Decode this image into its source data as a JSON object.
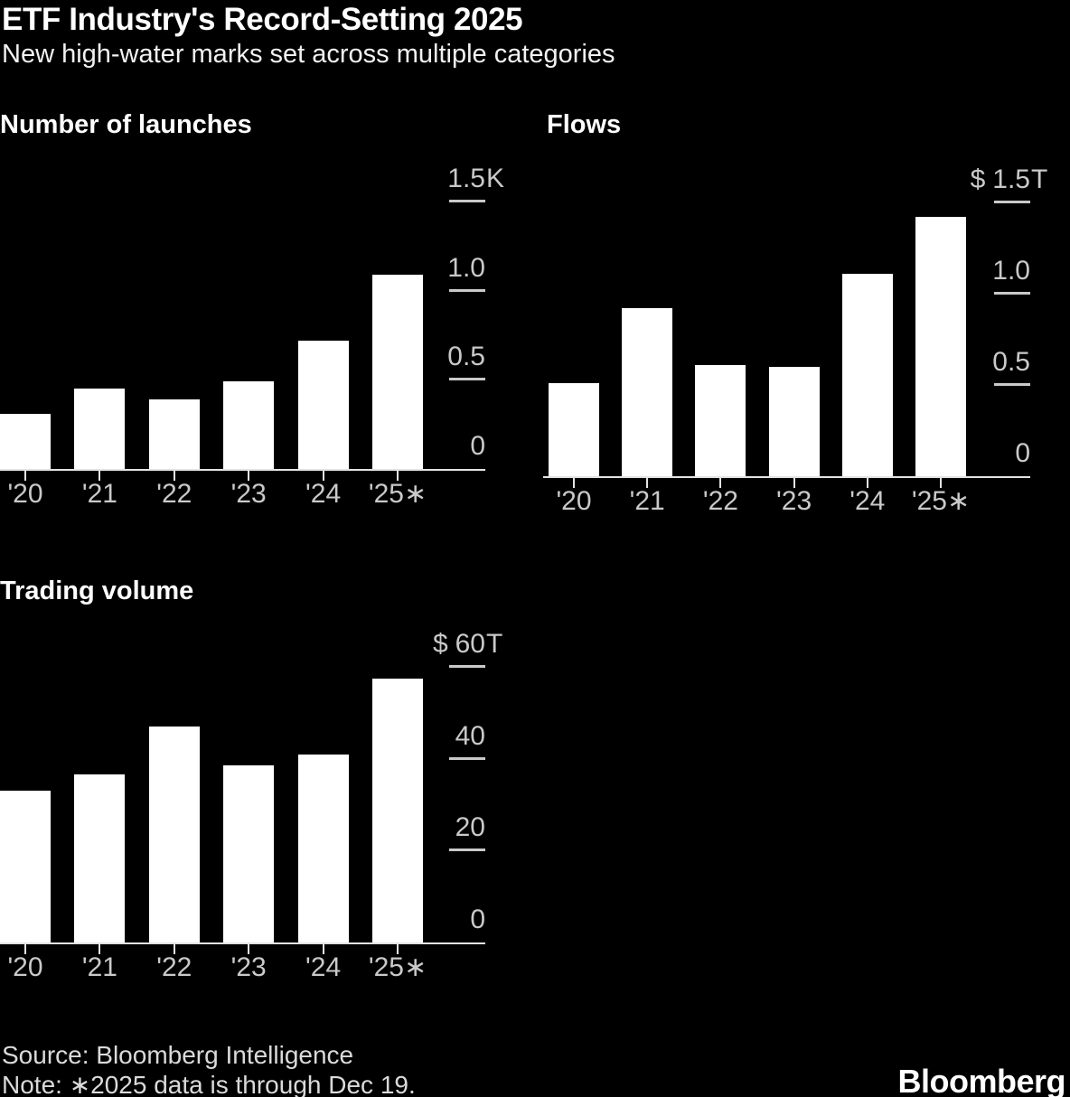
{
  "header": {
    "title": "ETF Industry's Record-Setting 2025",
    "subtitle": "New high-water marks set across multiple categories"
  },
  "footer": {
    "source": "Source: Bloomberg Intelligence",
    "note": "Note: ∗2025 data is through Dec 19.",
    "logo": "Bloomberg"
  },
  "colors": {
    "background": "#000000",
    "bar": "#ffffff",
    "axis": "#e3e3e3",
    "tick_label": "#c9c9c9",
    "text": "#ffffff"
  },
  "chart_data": [
    {
      "type": "bar",
      "title": "Number of launches",
      "categories": [
        "'20",
        "'21",
        "'22",
        "'23",
        "'24",
        "'25∗"
      ],
      "values": [
        310,
        450,
        390,
        490,
        720,
        1090
      ],
      "unit": "number of ETF launches",
      "ylim": [
        0,
        1520
      ],
      "grid": false,
      "legend": false,
      "axis_side": "right",
      "yticks": [
        {
          "value": 0,
          "label": "0"
        },
        {
          "value": 500,
          "label": "0.5"
        },
        {
          "value": 1000,
          "label": "1.0"
        },
        {
          "value": 1500,
          "label": "1.5",
          "suffix": "K"
        }
      ]
    },
    {
      "type": "bar",
      "title": "Flows",
      "categories": [
        "'20",
        "'21",
        "'22",
        "'23",
        "'24",
        "'25∗"
      ],
      "values": [
        0.51,
        0.92,
        0.61,
        0.6,
        1.11,
        1.42
      ],
      "unit": "USD trillions",
      "ylim": [
        0,
        1.55
      ],
      "grid": false,
      "legend": false,
      "axis_side": "right",
      "yticks": [
        {
          "value": 0,
          "label": "0"
        },
        {
          "value": 0.5,
          "label": "0.5"
        },
        {
          "value": 1,
          "label": "1.0"
        },
        {
          "value": 1.5,
          "label": "1.5",
          "prefix": "$",
          "suffix": "T"
        }
      ]
    },
    {
      "type": "bar",
      "title": "Trading volume",
      "categories": [
        "'20",
        "'21",
        "'22",
        "'23",
        "'24",
        "'25∗"
      ],
      "values": [
        33,
        36.5,
        47,
        38.5,
        41,
        57.5
      ],
      "unit": "USD trillions",
      "ylim": [
        0,
        62
      ],
      "grid": false,
      "legend": false,
      "axis_side": "right",
      "yticks": [
        {
          "value": 0,
          "label": "0"
        },
        {
          "value": 20,
          "label": "20"
        },
        {
          "value": 40,
          "label": "40"
        },
        {
          "value": 60,
          "label": "60",
          "prefix": "$",
          "suffix": "T"
        }
      ]
    }
  ]
}
